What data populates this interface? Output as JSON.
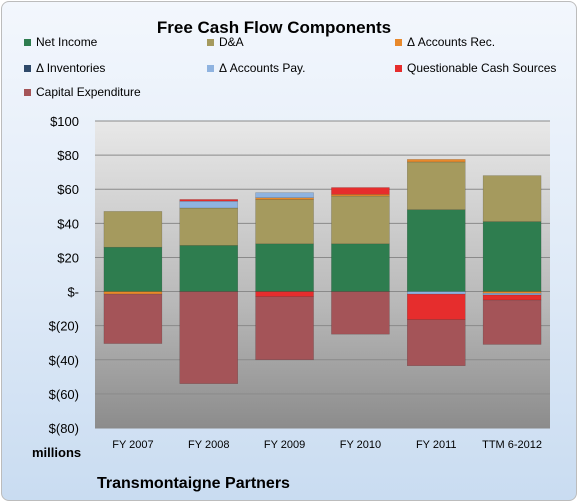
{
  "chart_data": {
    "type": "bar",
    "stacked": true,
    "title": "Free Cash Flow Components",
    "units_label": "millions",
    "footer": "Transmontaigne Partners",
    "categories": [
      "FY 2007",
      "FY 2008",
      "FY 2009",
      "FY 2010",
      "FY 2011",
      "TTM 6-2012"
    ],
    "yticks": [
      "$100",
      "$80",
      "$60",
      "$40",
      "$20",
      "$-",
      "$(20)",
      "$(40)",
      "$(60)",
      "$(80)"
    ],
    "ylim": [
      -80,
      100
    ],
    "grid": true,
    "legend_position": "top",
    "series": [
      {
        "name": "Net Income",
        "color": "#2e7d4f",
        "values": [
          26,
          27,
          28,
          28,
          48,
          41
        ]
      },
      {
        "name": "D&A",
        "color": "#a59a5e",
        "values": [
          21,
          22,
          26,
          28,
          28,
          27
        ]
      },
      {
        "name": "Δ Accounts Rec.",
        "color": "#e8892b",
        "values": [
          -1.5,
          0,
          1,
          1,
          1.5,
          -1
        ]
      },
      {
        "name": "Δ Inventories",
        "color": "#2f4a6a",
        "values": [
          0,
          0,
          0,
          0,
          0,
          0
        ]
      },
      {
        "name": "Δ Accounts Pay.",
        "color": "#8fb3e0",
        "values": [
          0,
          4,
          3,
          0,
          -1.5,
          -1
        ]
      },
      {
        "name": "Questionable Cash Sources",
        "color": "#e62d2d",
        "values": [
          0,
          1,
          -3,
          4,
          -15,
          -3
        ]
      },
      {
        "name": "Capital Expenditure",
        "color": "#a45458",
        "values": [
          -29,
          -54,
          -37,
          -25,
          -27,
          -26
        ]
      }
    ]
  }
}
